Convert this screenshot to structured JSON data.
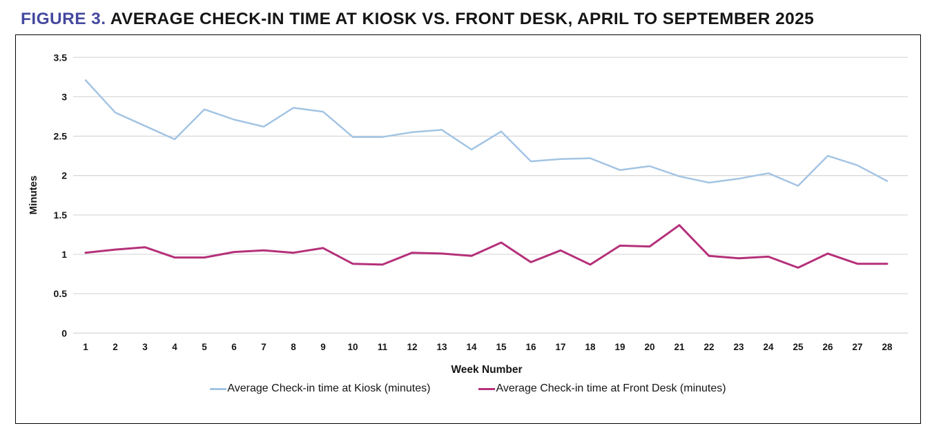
{
  "title": {
    "figure_label": "FIGURE 3.",
    "text": " AVERAGE CHECK-IN TIME AT KIOSK VS. FRONT DESK, APRIL TO SEPTEMBER 2025"
  },
  "colors": {
    "figure_label": "#45499e",
    "title_text": "#151515",
    "gridline": "#d9d9d9",
    "chart_border": "#000000",
    "kiosk_line": "#a3c4e3",
    "front_desk_line": "#b5307a"
  },
  "chart_data": {
    "type": "line",
    "title": "FIGURE 3. AVERAGE CHECK-IN TIME AT KIOSK VS. FRONT DESK, APRIL TO SEPTEMBER 2025",
    "xlabel": "Week Number",
    "ylabel": "Minutes",
    "ylim": [
      0,
      3.5
    ],
    "y_ticks": [
      0,
      0.5,
      1,
      1.5,
      2,
      2.5,
      3,
      3.5
    ],
    "grid": "horizontal-only",
    "legend_position": "bottom",
    "x": [
      1,
      2,
      3,
      4,
      5,
      6,
      7,
      8,
      9,
      10,
      11,
      12,
      13,
      14,
      15,
      16,
      17,
      18,
      19,
      20,
      21,
      22,
      23,
      24,
      25,
      26,
      27,
      28
    ],
    "series": [
      {
        "name": "Average Check-in time at Kiosk (minutes)",
        "color": "#a3c4e3",
        "stroke_width": 2.5,
        "values": [
          3.21,
          2.8,
          2.63,
          2.46,
          2.84,
          2.71,
          2.62,
          2.86,
          2.81,
          2.49,
          2.49,
          2.55,
          2.58,
          2.33,
          2.56,
          2.18,
          2.21,
          2.22,
          2.07,
          2.12,
          1.99,
          1.91,
          1.96,
          2.03,
          1.87,
          2.25,
          2.13,
          1.93
        ]
      },
      {
        "name": "Average Check-in time at Front Desk (minutes)",
        "color": "#b5307a",
        "stroke_width": 3,
        "values": [
          1.02,
          1.06,
          1.09,
          0.96,
          0.96,
          1.03,
          1.05,
          1.02,
          1.08,
          0.88,
          0.87,
          1.02,
          1.01,
          0.98,
          1.15,
          0.9,
          1.05,
          0.87,
          1.11,
          1.1,
          1.37,
          0.98,
          0.95,
          0.97,
          0.83,
          1.01,
          0.88,
          0.88
        ]
      }
    ]
  }
}
